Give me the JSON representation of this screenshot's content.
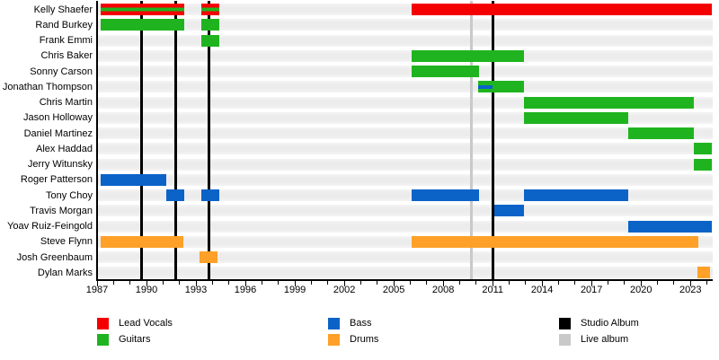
{
  "chart_data": {
    "type": "bar",
    "subtype": "gantt-band-member-timeline",
    "title": "",
    "x_axis": {
      "min": 1987,
      "max": 2024.35,
      "minor_tick_every_years": 1,
      "major_tick_every_years": 3,
      "tick_labels": [
        "1987",
        "1990",
        "1993",
        "1996",
        "1999",
        "2002",
        "2005",
        "2008",
        "2011",
        "2014",
        "2017",
        "2020",
        "2023"
      ]
    },
    "members": [
      {
        "name": "Kelly Shaefer",
        "segments": [
          {
            "role": "lead_vocals+guitars",
            "start": 1987.2,
            "end": 1992.3
          },
          {
            "role": "lead_vocals+guitars",
            "start": 1993.3,
            "end": 1994.4
          },
          {
            "role": "lead_vocals",
            "start": 2006.1,
            "end": 2024.3
          }
        ]
      },
      {
        "name": "Rand Burkey",
        "segments": [
          {
            "role": "guitars",
            "start": 1987.2,
            "end": 1992.3
          },
          {
            "role": "guitars",
            "start": 1993.3,
            "end": 1994.4
          }
        ]
      },
      {
        "name": "Frank Emmi",
        "segments": [
          {
            "role": "guitars",
            "start": 1993.3,
            "end": 1994.4
          }
        ]
      },
      {
        "name": "Chris Baker",
        "segments": [
          {
            "role": "guitars",
            "start": 2006.1,
            "end": 2012.9
          }
        ]
      },
      {
        "name": "Sonny Carson",
        "segments": [
          {
            "role": "guitars",
            "start": 2006.1,
            "end": 2010.2
          }
        ]
      },
      {
        "name": "Jonathan Thompson",
        "segments": [
          {
            "role": "guitars",
            "start": 2010.1,
            "end": 2012.9,
            "overlay": {
              "role": "bass",
              "start": 2010.1,
              "end": 2011.0
            }
          }
        ]
      },
      {
        "name": "Chris Martin",
        "segments": [
          {
            "role": "guitars",
            "start": 2012.9,
            "end": 2023.2
          }
        ]
      },
      {
        "name": "Jason Holloway",
        "segments": [
          {
            "role": "guitars",
            "start": 2012.9,
            "end": 2019.2
          }
        ]
      },
      {
        "name": "Daniel Martinez",
        "segments": [
          {
            "role": "guitars",
            "start": 2019.2,
            "end": 2023.2
          }
        ]
      },
      {
        "name": "Alex Haddad",
        "segments": [
          {
            "role": "guitars",
            "start": 2023.2,
            "end": 2024.3
          }
        ]
      },
      {
        "name": "Jerry Witunsky",
        "segments": [
          {
            "role": "guitars",
            "start": 2023.2,
            "end": 2024.3
          }
        ]
      },
      {
        "name": "Roger Patterson",
        "segments": [
          {
            "role": "bass",
            "start": 1987.2,
            "end": 1991.2
          }
        ]
      },
      {
        "name": "Tony Choy",
        "segments": [
          {
            "role": "bass",
            "start": 1991.2,
            "end": 1992.3
          },
          {
            "role": "bass",
            "start": 1993.3,
            "end": 1994.4
          },
          {
            "role": "bass",
            "start": 2006.1,
            "end": 2010.2
          },
          {
            "role": "bass",
            "start": 2012.9,
            "end": 2019.2
          }
        ]
      },
      {
        "name": "Travis Morgan",
        "segments": [
          {
            "role": "bass",
            "start": 2011.1,
            "end": 2012.9
          }
        ]
      },
      {
        "name": "Yoav Ruiz-Feingold",
        "segments": [
          {
            "role": "bass",
            "start": 2019.2,
            "end": 2024.3
          }
        ]
      },
      {
        "name": "Steve Flynn",
        "segments": [
          {
            "role": "drums",
            "start": 1987.2,
            "end": 1992.25
          },
          {
            "role": "drums",
            "start": 2006.1,
            "end": 2023.5
          }
        ]
      },
      {
        "name": "Josh Greenbaum",
        "segments": [
          {
            "role": "drums",
            "start": 1993.2,
            "end": 1994.3
          }
        ]
      },
      {
        "name": "Dylan Marks",
        "segments": [
          {
            "role": "drums",
            "start": 2023.4,
            "end": 2024.2
          }
        ]
      }
    ],
    "events": {
      "studio_albums": [
        1989.7,
        1991.75,
        1993.8,
        2011.0
      ],
      "live_albums": [
        2009.7
      ]
    },
    "legend_position": "bottom"
  },
  "colors": {
    "lead_vocals": "#f40000",
    "guitars": "#1fb41f",
    "bass": "#0b63c8",
    "drums": "#ffa028",
    "studio_album": "#000000",
    "live_album": "#c9c9c9",
    "row_band": "#ececec",
    "axis": "#000000"
  },
  "legend": [
    {
      "label": "Lead Vocals",
      "role": "lead_vocals",
      "col": 0,
      "row": 0
    },
    {
      "label": "Guitars",
      "role": "guitars",
      "col": 0,
      "row": 1
    },
    {
      "label": "Bass",
      "role": "bass",
      "col": 1,
      "row": 0
    },
    {
      "label": "Drums",
      "role": "drums",
      "col": 1,
      "row": 1
    },
    {
      "label": "Studio Album",
      "role": "studio_album",
      "col": 2,
      "row": 0
    },
    {
      "label": "Live album",
      "role": "live_album",
      "col": 2,
      "row": 1
    }
  ]
}
